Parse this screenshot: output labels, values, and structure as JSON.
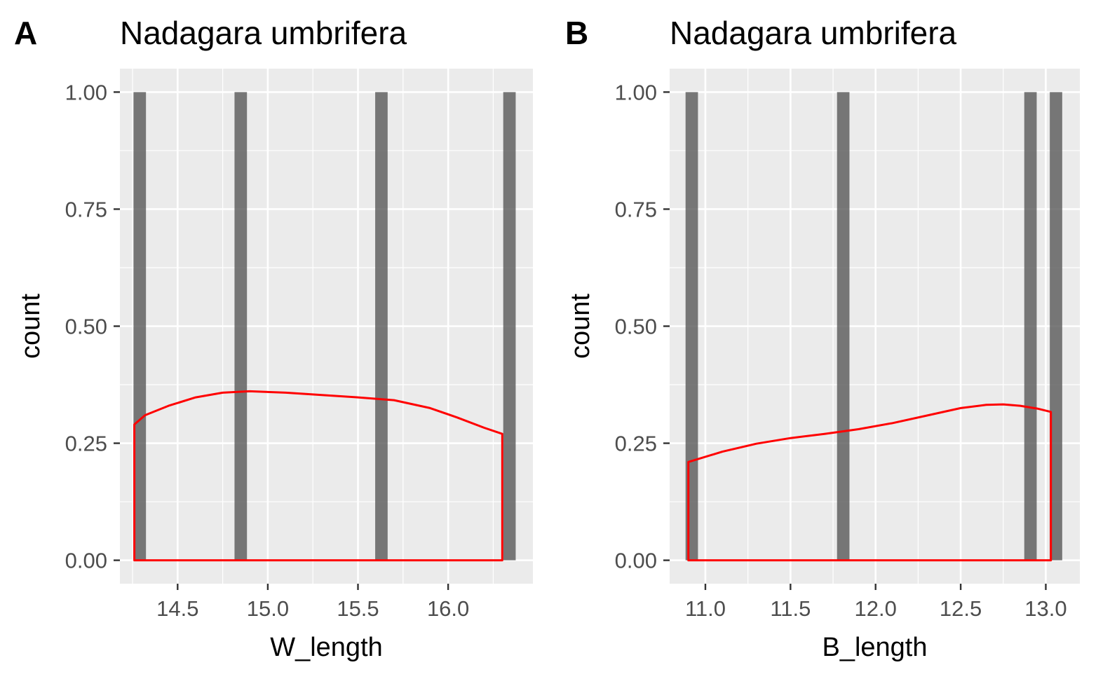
{
  "chart_data": [
    {
      "panel_tag": "A",
      "type": "bar",
      "title": "Nadagara umbrifera",
      "xlabel": "W_length",
      "ylabel": "count",
      "xlim": [
        14.18,
        16.47
      ],
      "ylim": [
        -0.05,
        1.05
      ],
      "xticks": [
        14.5,
        15.0,
        15.5,
        16.0
      ],
      "xtick_labels": [
        "14.5",
        "15.0",
        "15.5",
        "16.0"
      ],
      "yticks": [
        0,
        0.25,
        0.5,
        0.75,
        1.0
      ],
      "ytick_labels": [
        "0.00",
        "0.25",
        "0.50",
        "0.75",
        "1.00"
      ],
      "grid": true,
      "bar_width": 0.069,
      "bars": [
        {
          "x": 14.29,
          "count": 1
        },
        {
          "x": 14.85,
          "count": 1
        },
        {
          "x": 15.63,
          "count": 1
        },
        {
          "x": 16.34,
          "count": 1
        }
      ],
      "density": {
        "color": "#ff0000",
        "x": [
          14.26,
          14.32,
          14.45,
          14.6,
          14.75,
          14.9,
          15.1,
          15.3,
          15.5,
          15.7,
          15.9,
          16.05,
          16.2,
          16.3
        ],
        "y": [
          0.29,
          0.31,
          0.33,
          0.348,
          0.358,
          0.361,
          0.358,
          0.353,
          0.348,
          0.342,
          0.325,
          0.305,
          0.283,
          0.27
        ]
      }
    },
    {
      "panel_tag": "B",
      "type": "bar",
      "title": "Nadagara umbrifera",
      "xlabel": "B_length",
      "ylabel": "count",
      "xlim": [
        10.79,
        13.2
      ],
      "ylim": [
        -0.05,
        1.05
      ],
      "xticks": [
        11.0,
        11.5,
        12.0,
        12.5,
        13.0
      ],
      "xtick_labels": [
        "11.0",
        "11.5",
        "12.0",
        "12.5",
        "13.0"
      ],
      "yticks": [
        0,
        0.25,
        0.5,
        0.75,
        1.0
      ],
      "ytick_labels": [
        "0.00",
        "0.25",
        "0.50",
        "0.75",
        "1.00"
      ],
      "grid": true,
      "bar_width": 0.073,
      "bars": [
        {
          "x": 10.92,
          "count": 1
        },
        {
          "x": 11.81,
          "count": 1
        },
        {
          "x": 12.91,
          "count": 1
        },
        {
          "x": 13.06,
          "count": 1
        }
      ],
      "density": {
        "color": "#ff0000",
        "x": [
          10.9,
          11.1,
          11.3,
          11.5,
          11.7,
          11.9,
          12.1,
          12.3,
          12.5,
          12.65,
          12.75,
          12.85,
          12.95,
          13.03
        ],
        "y": [
          0.21,
          0.232,
          0.249,
          0.261,
          0.27,
          0.28,
          0.293,
          0.309,
          0.325,
          0.332,
          0.333,
          0.33,
          0.324,
          0.317
        ]
      }
    }
  ]
}
